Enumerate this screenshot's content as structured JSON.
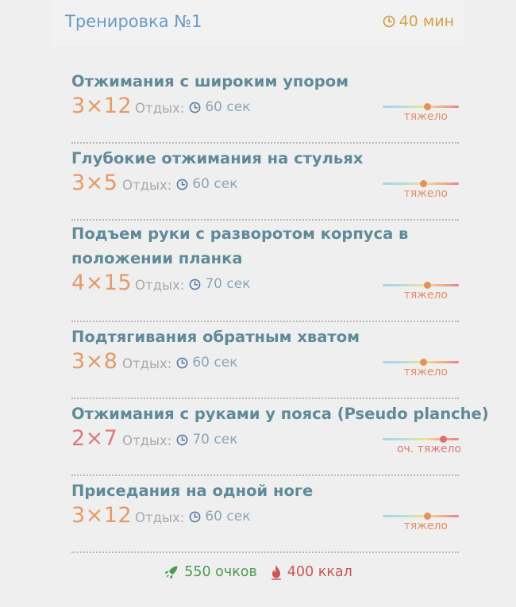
{
  "header": {
    "title": "Тренировка №1",
    "duration": "40 мин"
  },
  "exercises": [
    {
      "name": [
        "Отжимания с широким упором"
      ],
      "sets": "3×12",
      "rest_label": "Отдых:",
      "rest": "60 сек",
      "difficulty": "тяжело",
      "difficulty_level": 0.6
    },
    {
      "name": [
        "Глубокие отжимания на стульях"
      ],
      "sets": "3×5",
      "rest_label": "Отдых:",
      "rest": "60 сек",
      "difficulty": "тяжело",
      "difficulty_level": 0.55
    },
    {
      "name": [
        "Подъем руки с разворотом корпуса в",
        "положении планка"
      ],
      "sets": "4×15",
      "rest_label": "Отдых:",
      "rest": "70 сек",
      "difficulty": "тяжело",
      "difficulty_level": 0.6
    },
    {
      "name": [
        "Подтягивания обратным хватом"
      ],
      "sets": "3×8",
      "rest_label": "Отдых:",
      "rest": "60 сек",
      "difficulty": "тяжело",
      "difficulty_level": 0.55
    },
    {
      "name": [
        "Отжимания с руками у пояса (Pseudo planche)"
      ],
      "sets": "2×7",
      "rest_label": "Отдых:",
      "rest": "70 сек",
      "difficulty": "оч. тяжело",
      "difficulty_level": 0.8
    },
    {
      "name": [
        "Приседания на одной ноге"
      ],
      "sets": "3×12",
      "rest_label": "Отдых:",
      "rest": "60 сек",
      "difficulty": "тяжело",
      "difficulty_level": 0.6
    }
  ],
  "footer": {
    "points": "550 очков",
    "kcal": "400 ккал"
  },
  "colors": {
    "title": "#6b9cc6",
    "duration": "#d3a24a",
    "sets": "#e59a67",
    "points": "#4a9a53",
    "kcal": "#cc5555"
  },
  "icons": {
    "duration": "clock-icon",
    "rest": "clock-icon",
    "points": "rocket-icon",
    "kcal": "flame-icon"
  }
}
